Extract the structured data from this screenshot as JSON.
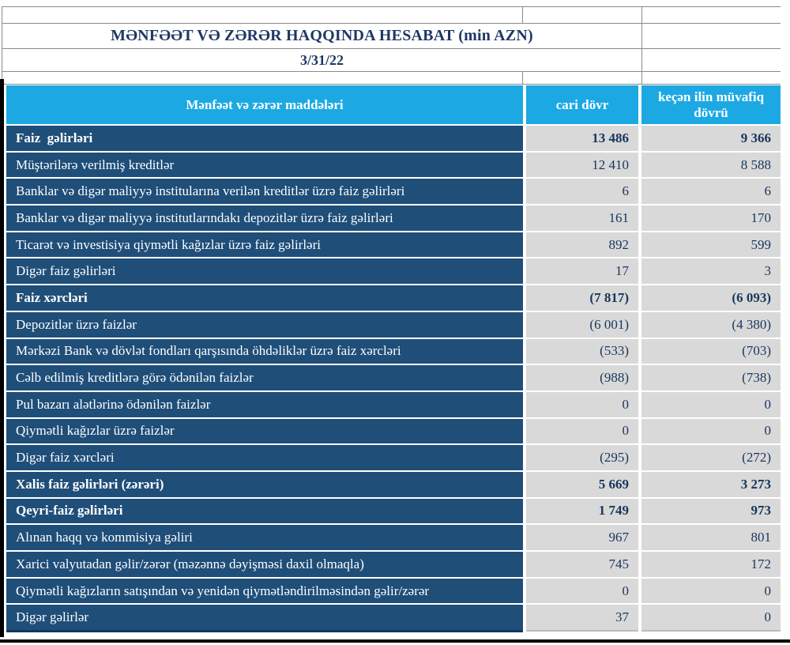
{
  "report": {
    "title": "MƏNFƏƏT VƏ ZƏRƏR HAQQINDA HESABAT (min AZN)",
    "date": "3/31/22"
  },
  "table": {
    "columns": {
      "items": "Mənfəət və zərər maddələri",
      "current": "cari dövr",
      "previous": "keçən ilin müvafiq dövrü"
    },
    "rows": [
      {
        "label": "Faiz  gəlirləri",
        "current": "13 486",
        "previous": "9 366",
        "bold": true
      },
      {
        "label": "Müştərilərə verilmiş kreditlər",
        "current": "12 410",
        "previous": "8 588",
        "bold": false
      },
      {
        "label": "Banklar və digər maliyyə institularına verilən kreditlər üzrə faiz gəlirləri",
        "current": "6",
        "previous": "6",
        "bold": false
      },
      {
        "label": "Banklar və digər maliyyə institutlarındakı depozitlər üzrə faiz gəlirləri",
        "current": "161",
        "previous": "170",
        "bold": false
      },
      {
        "label": "Ticarət və investisiya qiymətli kağızlar üzrə faiz gəlirləri",
        "current": "892",
        "previous": "599",
        "bold": false
      },
      {
        "label": "Digər faiz gəlirləri",
        "current": "17",
        "previous": "3",
        "bold": false
      },
      {
        "label": "Faiz xərcləri",
        "current": "(7 817)",
        "previous": "(6 093)",
        "bold": true
      },
      {
        "label": "Depozitlər üzrə faizlər",
        "current": "(6 001)",
        "previous": "(4 380)",
        "bold": false
      },
      {
        "label": "Mərkəzi Bank və dövlət fondları qarşısında öhdəliklər üzrə faiz xərcləri",
        "current": "(533)",
        "previous": "(703)",
        "bold": false
      },
      {
        "label": "Cəlb edilmiş kreditlərə görə ödənilən faizlər",
        "current": "(988)",
        "previous": "(738)",
        "bold": false
      },
      {
        "label": "Pul bazarı alətlərinə ödənilən faizlər",
        "current": "0",
        "previous": "0",
        "bold": false
      },
      {
        "label": "Qiymətli kağızlar üzrə faizlər",
        "current": "0",
        "previous": "0",
        "bold": false
      },
      {
        "label": "Digər faiz xərcləri",
        "current": "(295)",
        "previous": "(272)",
        "bold": false
      },
      {
        "label": "Xalis faiz gəlirləri (zərəri)",
        "current": "5 669",
        "previous": "3 273",
        "bold": true
      },
      {
        "label": "Qeyri-faiz gəlirləri",
        "current": "1 749",
        "previous": "973",
        "bold": true
      },
      {
        "label": "Alınan haqq və kommisiya gəliri",
        "current": "967",
        "previous": "801",
        "bold": false
      },
      {
        "label": "Xarici valyutadan gəlir/zərər (məzənnə dəyişməsi daxil olmaqla)",
        "current": "745",
        "previous": "172",
        "bold": false
      },
      {
        "label": "Qiymətli kağızların satışından və yenidən qiymətləndirilməsindən gəlir/zərər",
        "current": "0",
        "previous": "0",
        "bold": false
      },
      {
        "label": "Digər gəlirlər",
        "current": "37",
        "previous": "0",
        "bold": false
      }
    ]
  },
  "colors": {
    "header_cyan": "#1ca9e3",
    "row_navy": "#1f4e79",
    "value_gray": "#d9d9d9",
    "text_navy": "#17365d",
    "title_navy": "#1f3864",
    "grid_border": "#8a8a8a",
    "selection_black": "#000000"
  }
}
